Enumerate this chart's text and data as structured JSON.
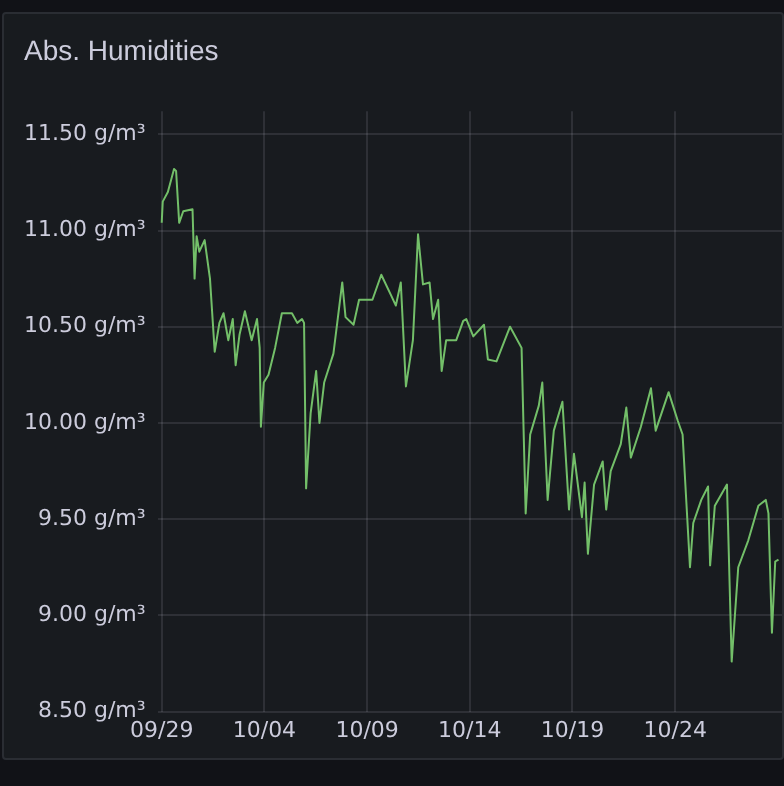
{
  "chart_data": {
    "type": "line",
    "title": "Abs. Humidities",
    "series": [
      {
        "color": "#73bf69",
        "x": [
          "--09-29T00:00",
          "--09-29T01:12",
          "--09-29T07:12",
          "--09-29T14:24",
          "--09-29T16:48",
          "--09-29T20:24",
          "--09-30T01:12",
          "--09-30T12:00",
          "--09-30T14:24",
          "--09-30T16:48",
          "--09-30T19:55",
          "--10-01T02:10",
          "--10-01T08:24",
          "--10-01T13:55",
          "--10-01T19:26",
          "--10-02T00:14",
          "--10-02T05:46",
          "--10-02T11:02",
          "--10-02T14:24",
          "--10-02T18:58",
          "--10-03T01:12",
          "--10-03T09:07",
          "--10-03T15:22",
          "--10-03T18:29",
          "--10-03T19:55",
          "--10-03T23:17",
          "--10-04T04:48",
          "--10-04T12:29",
          "--10-04T20:24",
          "--10-05T08:10",
          "--10-05T14:24",
          "--10-05T19:55",
          "--10-05T22:19",
          "--10-06T00:43",
          "--10-06T06:00",
          "--10-06T12:29",
          "--10-06T16:19",
          "--10-06T21:50",
          "--10-07T08:38",
          "--10-07T18:58",
          "--10-07T22:48",
          "--10-08T08:10",
          "--10-08T14:38",
          "--10-09T06:14",
          "--10-09T16:34",
          "--10-10T04:19",
          "--10-10T09:36",
          "--10-10T15:22",
          "--10-10T21:22",
          "--10-11T05:31",
          "--10-11T11:31",
          "--10-11T17:17",
          "--10-12T00:58",
          "--10-12T05:02",
          "--10-12T11:02",
          "--10-12T15:07",
          "--10-12T20:24",
          "--10-13T08:10",
          "--10-13T16:19",
          "--10-13T19:55",
          "--10-14T04:05",
          "--10-14T16:34",
          "--10-14T21:07",
          "--10-15T07:12",
          "--10-15T23:02",
          "--10-16T12:29",
          "--10-16T17:17",
          "--10-16T22:34",
          "--10-17T08:38",
          "--10-17T12:43",
          "--10-17T18:58",
          "--10-18T02:10",
          "--10-18T12:14",
          "--10-18T19:55",
          "--10-19T01:41",
          "--10-19T11:02",
          "--10-19T14:10",
          "--10-19T18:00",
          "--10-20T01:12",
          "--10-20T11:17",
          "--10-20T15:22",
          "--10-20T20:38",
          "--10-21T08:24",
          "--10-21T14:53",
          "--10-21T20:10",
          "--10-22T07:55",
          "--10-22T19:41",
          "--10-23T01:12",
          "--10-23T16:19",
          "--10-24T03:07",
          "--10-24T08:38",
          "--10-24T17:17",
          "--10-24T21:07",
          "--10-25T06:29",
          "--10-25T14:24",
          "--10-25T16:48",
          "--10-25T22:19",
          "--10-26T12:29",
          "--10-26T18:00",
          "--10-27T01:41",
          "--10-27T13:26",
          "--10-28T01:12",
          "--10-28T09:50",
          "--10-28T12:58",
          "--10-28T17:02",
          "--10-28T20:53",
          "--10-29T00:43"
        ],
        "values": [
          11.04,
          11.15,
          11.2,
          11.32,
          11.31,
          11.04,
          11.1,
          11.11,
          10.75,
          10.97,
          10.89,
          10.95,
          10.75,
          10.37,
          10.52,
          10.57,
          10.43,
          10.54,
          10.3,
          10.46,
          10.58,
          10.43,
          10.54,
          10.39,
          9.98,
          10.21,
          10.25,
          10.39,
          10.57,
          10.57,
          10.52,
          10.54,
          10.52,
          9.66,
          10.05,
          10.27,
          10,
          10.21,
          10.36,
          10.73,
          10.55,
          10.51,
          10.64,
          10.64,
          10.77,
          10.66,
          10.61,
          10.73,
          10.19,
          10.43,
          10.98,
          10.72,
          10.73,
          10.54,
          10.64,
          10.27,
          10.43,
          10.43,
          10.53,
          10.54,
          10.45,
          10.51,
          10.33,
          10.32,
          10.5,
          10.39,
          9.53,
          9.94,
          10.09,
          10.21,
          9.6,
          9.96,
          10.11,
          9.55,
          9.84,
          9.51,
          9.69,
          9.32,
          9.68,
          9.8,
          9.55,
          9.75,
          9.89,
          10.08,
          9.82,
          9.98,
          10.18,
          9.96,
          10.16,
          10.01,
          9.94,
          9.25,
          9.48,
          9.6,
          9.67,
          9.26,
          9.57,
          9.68,
          8.76,
          9.25,
          9.39,
          9.57,
          9.6,
          9.53,
          8.91,
          9.28,
          9.29
        ]
      }
    ],
    "xlim": [
      "--09-28T19:12",
      "--10-29T04:48"
    ],
    "xticks": [
      {
        "value": "--09-29",
        "label": "09/29"
      },
      {
        "value": "--10-04",
        "label": "10/04"
      },
      {
        "value": "--10-09",
        "label": "10/09"
      },
      {
        "value": "--10-14",
        "label": "10/14"
      },
      {
        "value": "--10-19",
        "label": "10/19"
      },
      {
        "value": "--10-24",
        "label": "10/24"
      }
    ],
    "ylim": [
      8.5,
      11.62
    ],
    "yticks": [
      {
        "value": 8.5,
        "label": "8.50 g/m³"
      },
      {
        "value": 9,
        "label": "9.00 g/m³"
      },
      {
        "value": 9.5,
        "label": "9.50 g/m³"
      },
      {
        "value": 10,
        "label": "10.00 g/m³"
      },
      {
        "value": 10.5,
        "label": "10.50 g/m³"
      },
      {
        "value": 11,
        "label": "11.00 g/m³"
      },
      {
        "value": 11.5,
        "label": "11.50 g/m³"
      }
    ],
    "grid": true,
    "legend": false,
    "marker": "none",
    "line_style": "solid"
  }
}
